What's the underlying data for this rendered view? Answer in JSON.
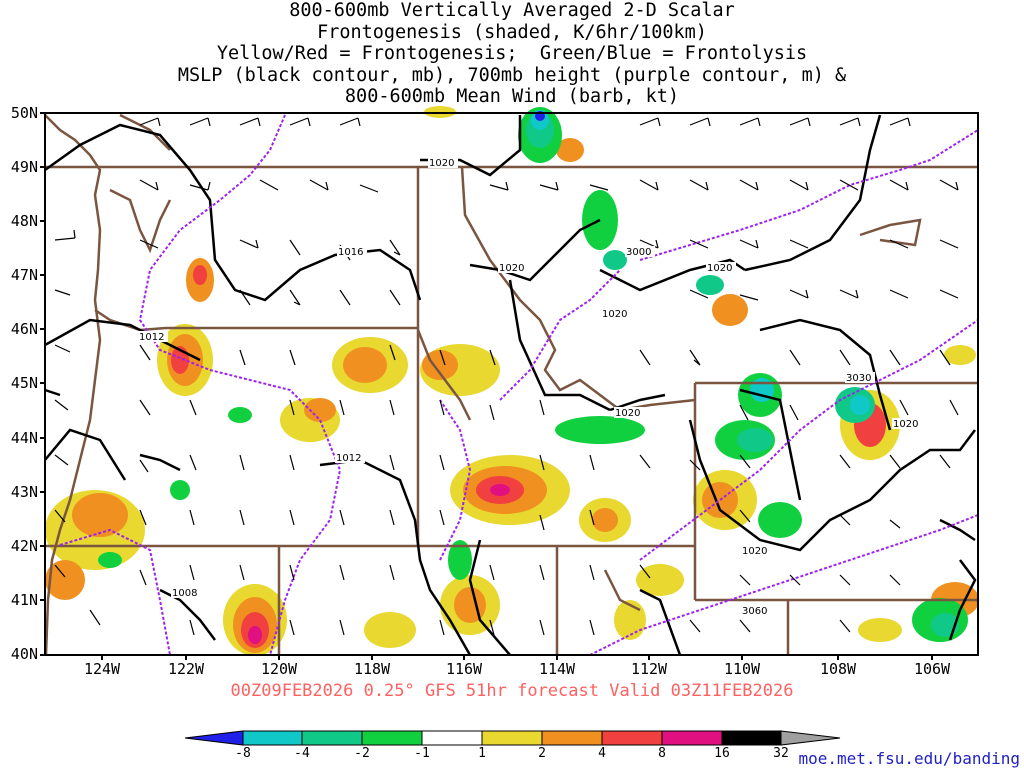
{
  "title": {
    "line1": "800-600mb Vertically Averaged 2-D Scalar",
    "line2": "Frontogenesis (shaded, K/6hr/100km)",
    "line3": "Yellow/Red = Frontogenesis;  Green/Blue = Frontolysis",
    "line4": "MSLP (black contour, mb), 700mb height (purple contour, m) &",
    "line5": "800-600mb Mean Wind (barb, kt)"
  },
  "footer": "00Z09FEB2026 0.25° GFS 51hr forecast Valid 03Z11FEB2026",
  "credit": "moe.met.fsu.edu/banding",
  "lat_labels": [
    "50N",
    "49N",
    "48N",
    "47N",
    "46N",
    "45N",
    "44N",
    "43N",
    "42N",
    "41N",
    "40N"
  ],
  "lon_labels": [
    "124W",
    "122W",
    "120W",
    "118W",
    "116W",
    "114W",
    "112W",
    "110W",
    "108W",
    "106W"
  ],
  "colorbar": {
    "colors": [
      "#2020e8",
      "#10c8c8",
      "#10c888",
      "#10d040",
      "#ffffff",
      "#ffffff",
      "#e8d830",
      "#f09020",
      "#f04040",
      "#e01080",
      "#000000",
      "#a0a0a0"
    ],
    "labels": [
      "-8",
      "-4",
      "-2",
      "-1",
      "1",
      "2",
      "4",
      "8",
      "16",
      "32"
    ]
  },
  "contour_labels": {
    "mslp": [
      "1020",
      "1016",
      "1020",
      "1020",
      "1012",
      "1020",
      "1012",
      "1020",
      "1020",
      "1008"
    ],
    "height": [
      "3000",
      "3030",
      "3060"
    ]
  },
  "colors": {
    "mslp_contour": "#000000",
    "height_contour": "#a020f0",
    "borders": "#7a5540",
    "barbs": "#000000"
  }
}
